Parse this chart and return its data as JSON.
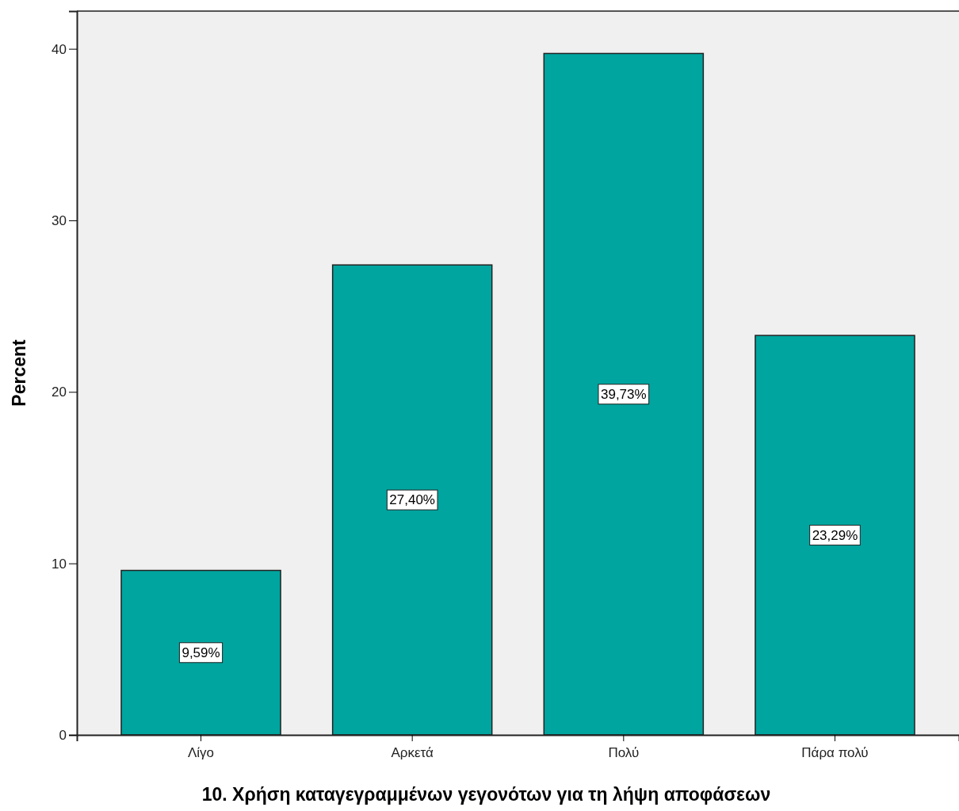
{
  "chart_data": {
    "type": "bar",
    "xlabel": "10. Χρήση καταγεγραμμένων γεγονότων για τη λήψη αποφάσεων",
    "ylabel": "Percent",
    "categories": [
      "Λίγο",
      "Αρκετά",
      "Πολύ",
      "Πάρα πολύ"
    ],
    "values": [
      9.59,
      27.4,
      39.73,
      23.29
    ],
    "value_labels": [
      "9,59%",
      "27,40%",
      "39,73%",
      "23,29%"
    ],
    "color": "#00a59f",
    "ylim": [
      0,
      42.2
    ],
    "yticks": [
      0,
      10,
      20,
      30,
      40
    ]
  }
}
